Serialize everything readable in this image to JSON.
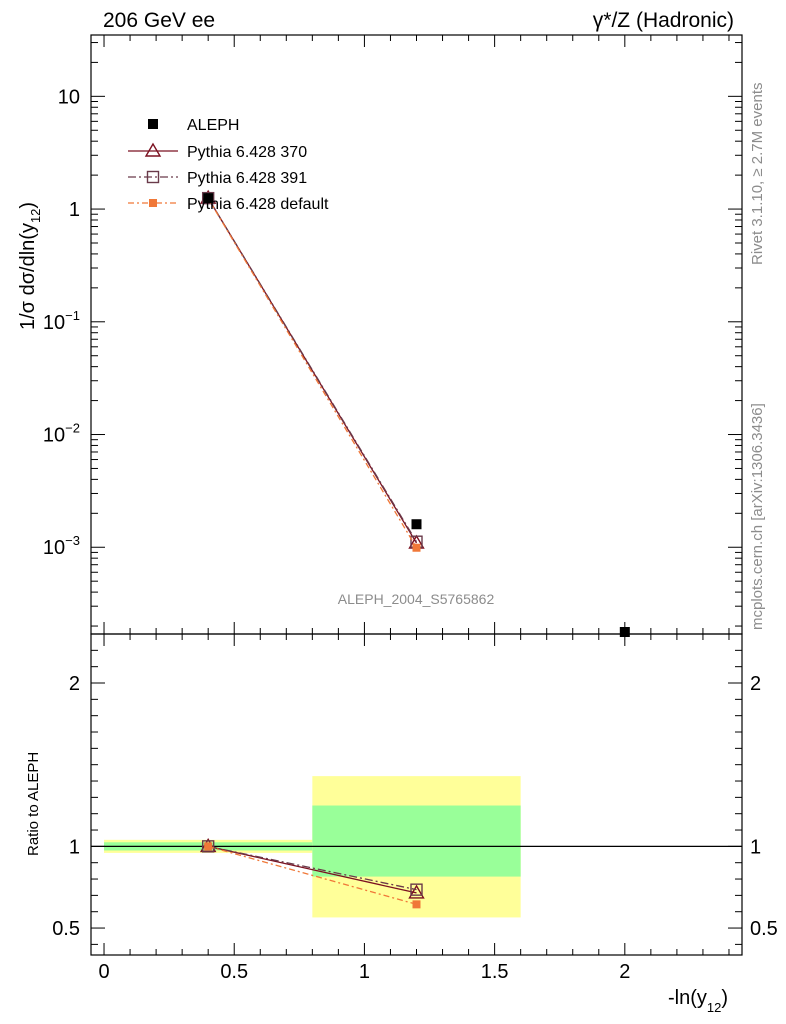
{
  "header": {
    "left_label": "206 GeV ee",
    "right_label": "γ*/Z (Hadronic)"
  },
  "side_labels": {
    "rivet": "Rivet 3.1.10, ≥ 2.7M events",
    "mcplots": "mcplots.cern.ch [arXiv:1306.3436]"
  },
  "watermark": "ALEPH_2004_S5765862",
  "colors": {
    "data": "#000000",
    "p370": "#7b1020",
    "p391": "#6a3a4a",
    "pdefault": "#f07838",
    "band_inner": "#99ff99",
    "band_outer": "#ffff99"
  },
  "chart_data": [
    {
      "type": "line",
      "panel": "main",
      "ylabel_main": "1/σ dσ/dln(y",
      "ylabel_sub": "12",
      "yscale": "log",
      "ylim": [
        0.00017,
        35
      ],
      "xlim": [
        -0.05,
        2.45
      ],
      "ytick_labels": [
        {
          "v": 10,
          "base": "10",
          "exp": ""
        },
        {
          "v": 1,
          "base": "1",
          "exp": ""
        },
        {
          "v": 0.1,
          "base": "10",
          "exp": "−1"
        },
        {
          "v": 0.01,
          "base": "10",
          "exp": "−2"
        },
        {
          "v": 0.001,
          "base": "10",
          "exp": "−3"
        }
      ],
      "legend": [
        {
          "key": "data",
          "label": "ALEPH"
        },
        {
          "key": "p370",
          "label": "Pythia 6.428 370"
        },
        {
          "key": "p391",
          "label": "Pythia 6.428 391"
        },
        {
          "key": "pdefault",
          "label": "Pythia 6.428 default"
        }
      ],
      "data_points": [
        {
          "x": 0.4,
          "y": 1.25
        },
        {
          "x": 1.2,
          "y": 0.0016
        },
        {
          "x": 2.0,
          "y": 0.00017
        }
      ],
      "series": [
        {
          "key": "p370",
          "x": [
            0.4,
            1.2
          ],
          "y": [
            1.25,
            0.00109
          ]
        },
        {
          "key": "p391",
          "x": [
            0.4,
            1.2
          ],
          "y": [
            1.25,
            0.00112
          ]
        },
        {
          "key": "pdefault",
          "x": [
            0.4,
            1.2
          ],
          "y": [
            1.24,
            0.00099
          ]
        }
      ]
    },
    {
      "type": "line",
      "panel": "ratio",
      "ylabel": "Ratio to ALEPH",
      "xlabel_main": "-ln(y",
      "xlabel_sub": "12",
      "xlim": [
        -0.05,
        2.45
      ],
      "ylim": [
        0.335,
        2.3
      ],
      "xtick_labels": [
        {
          "v": 0,
          "label": "0"
        },
        {
          "v": 0.5,
          "label": "0.5"
        },
        {
          "v": 1,
          "label": "1"
        },
        {
          "v": 1.5,
          "label": "1.5"
        },
        {
          "v": 2,
          "label": "2"
        }
      ],
      "ytick_labels": [
        {
          "v": 2,
          "label": "2"
        },
        {
          "v": 1,
          "label": "1"
        },
        {
          "v": 0.5,
          "label": "0.5"
        }
      ],
      "bands": [
        {
          "x0": 0.0,
          "x1": 0.8,
          "inner": [
            0.975,
            1.025
          ],
          "outer": [
            0.96,
            1.04
          ]
        },
        {
          "x0": 0.8,
          "x1": 1.6,
          "inner": [
            0.815,
            1.25
          ],
          "outer": [
            0.565,
            1.43
          ]
        }
      ],
      "series": [
        {
          "key": "p370",
          "x": [
            0.4,
            1.2
          ],
          "y": [
            1.0,
            0.715
          ]
        },
        {
          "key": "p391",
          "x": [
            0.4,
            1.2
          ],
          "y": [
            1.0,
            0.735
          ]
        },
        {
          "key": "pdefault",
          "x": [
            0.4,
            1.2
          ],
          "y": [
            1.0,
            0.645
          ]
        }
      ]
    }
  ]
}
